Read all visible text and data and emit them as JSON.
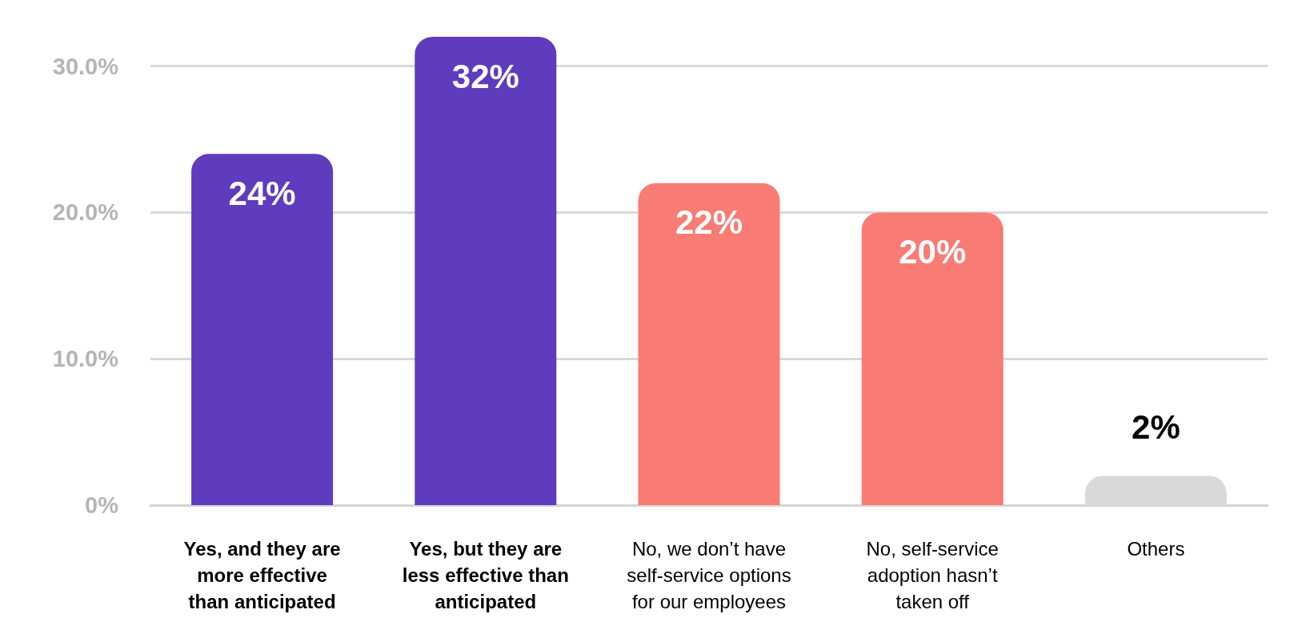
{
  "chart_data": {
    "type": "bar",
    "categories": [
      "Yes, and they are more effective than anticipated",
      "Yes, but they are less effective than anticipated",
      "No, we don’t have self-service options for our employees",
      "No, self-service adoption hasn’t taken off",
      "Others"
    ],
    "values": [
      24,
      32,
      22,
      20,
      2
    ],
    "colors": [
      "#5f3bbd",
      "#5f3bbd",
      "#f87b74",
      "#f87b74",
      "#d9d9d9"
    ],
    "value_labels": [
      "24%",
      "32%",
      "22%",
      "20%",
      "2%"
    ],
    "ylim": [
      0,
      32
    ],
    "yticks": [
      {
        "value": 0,
        "label": "0%"
      },
      {
        "value": 10,
        "label": "10.0%"
      },
      {
        "value": 20,
        "label": "20.0%"
      },
      {
        "value": 30,
        "label": "30.0%"
      }
    ],
    "grid": "y"
  }
}
